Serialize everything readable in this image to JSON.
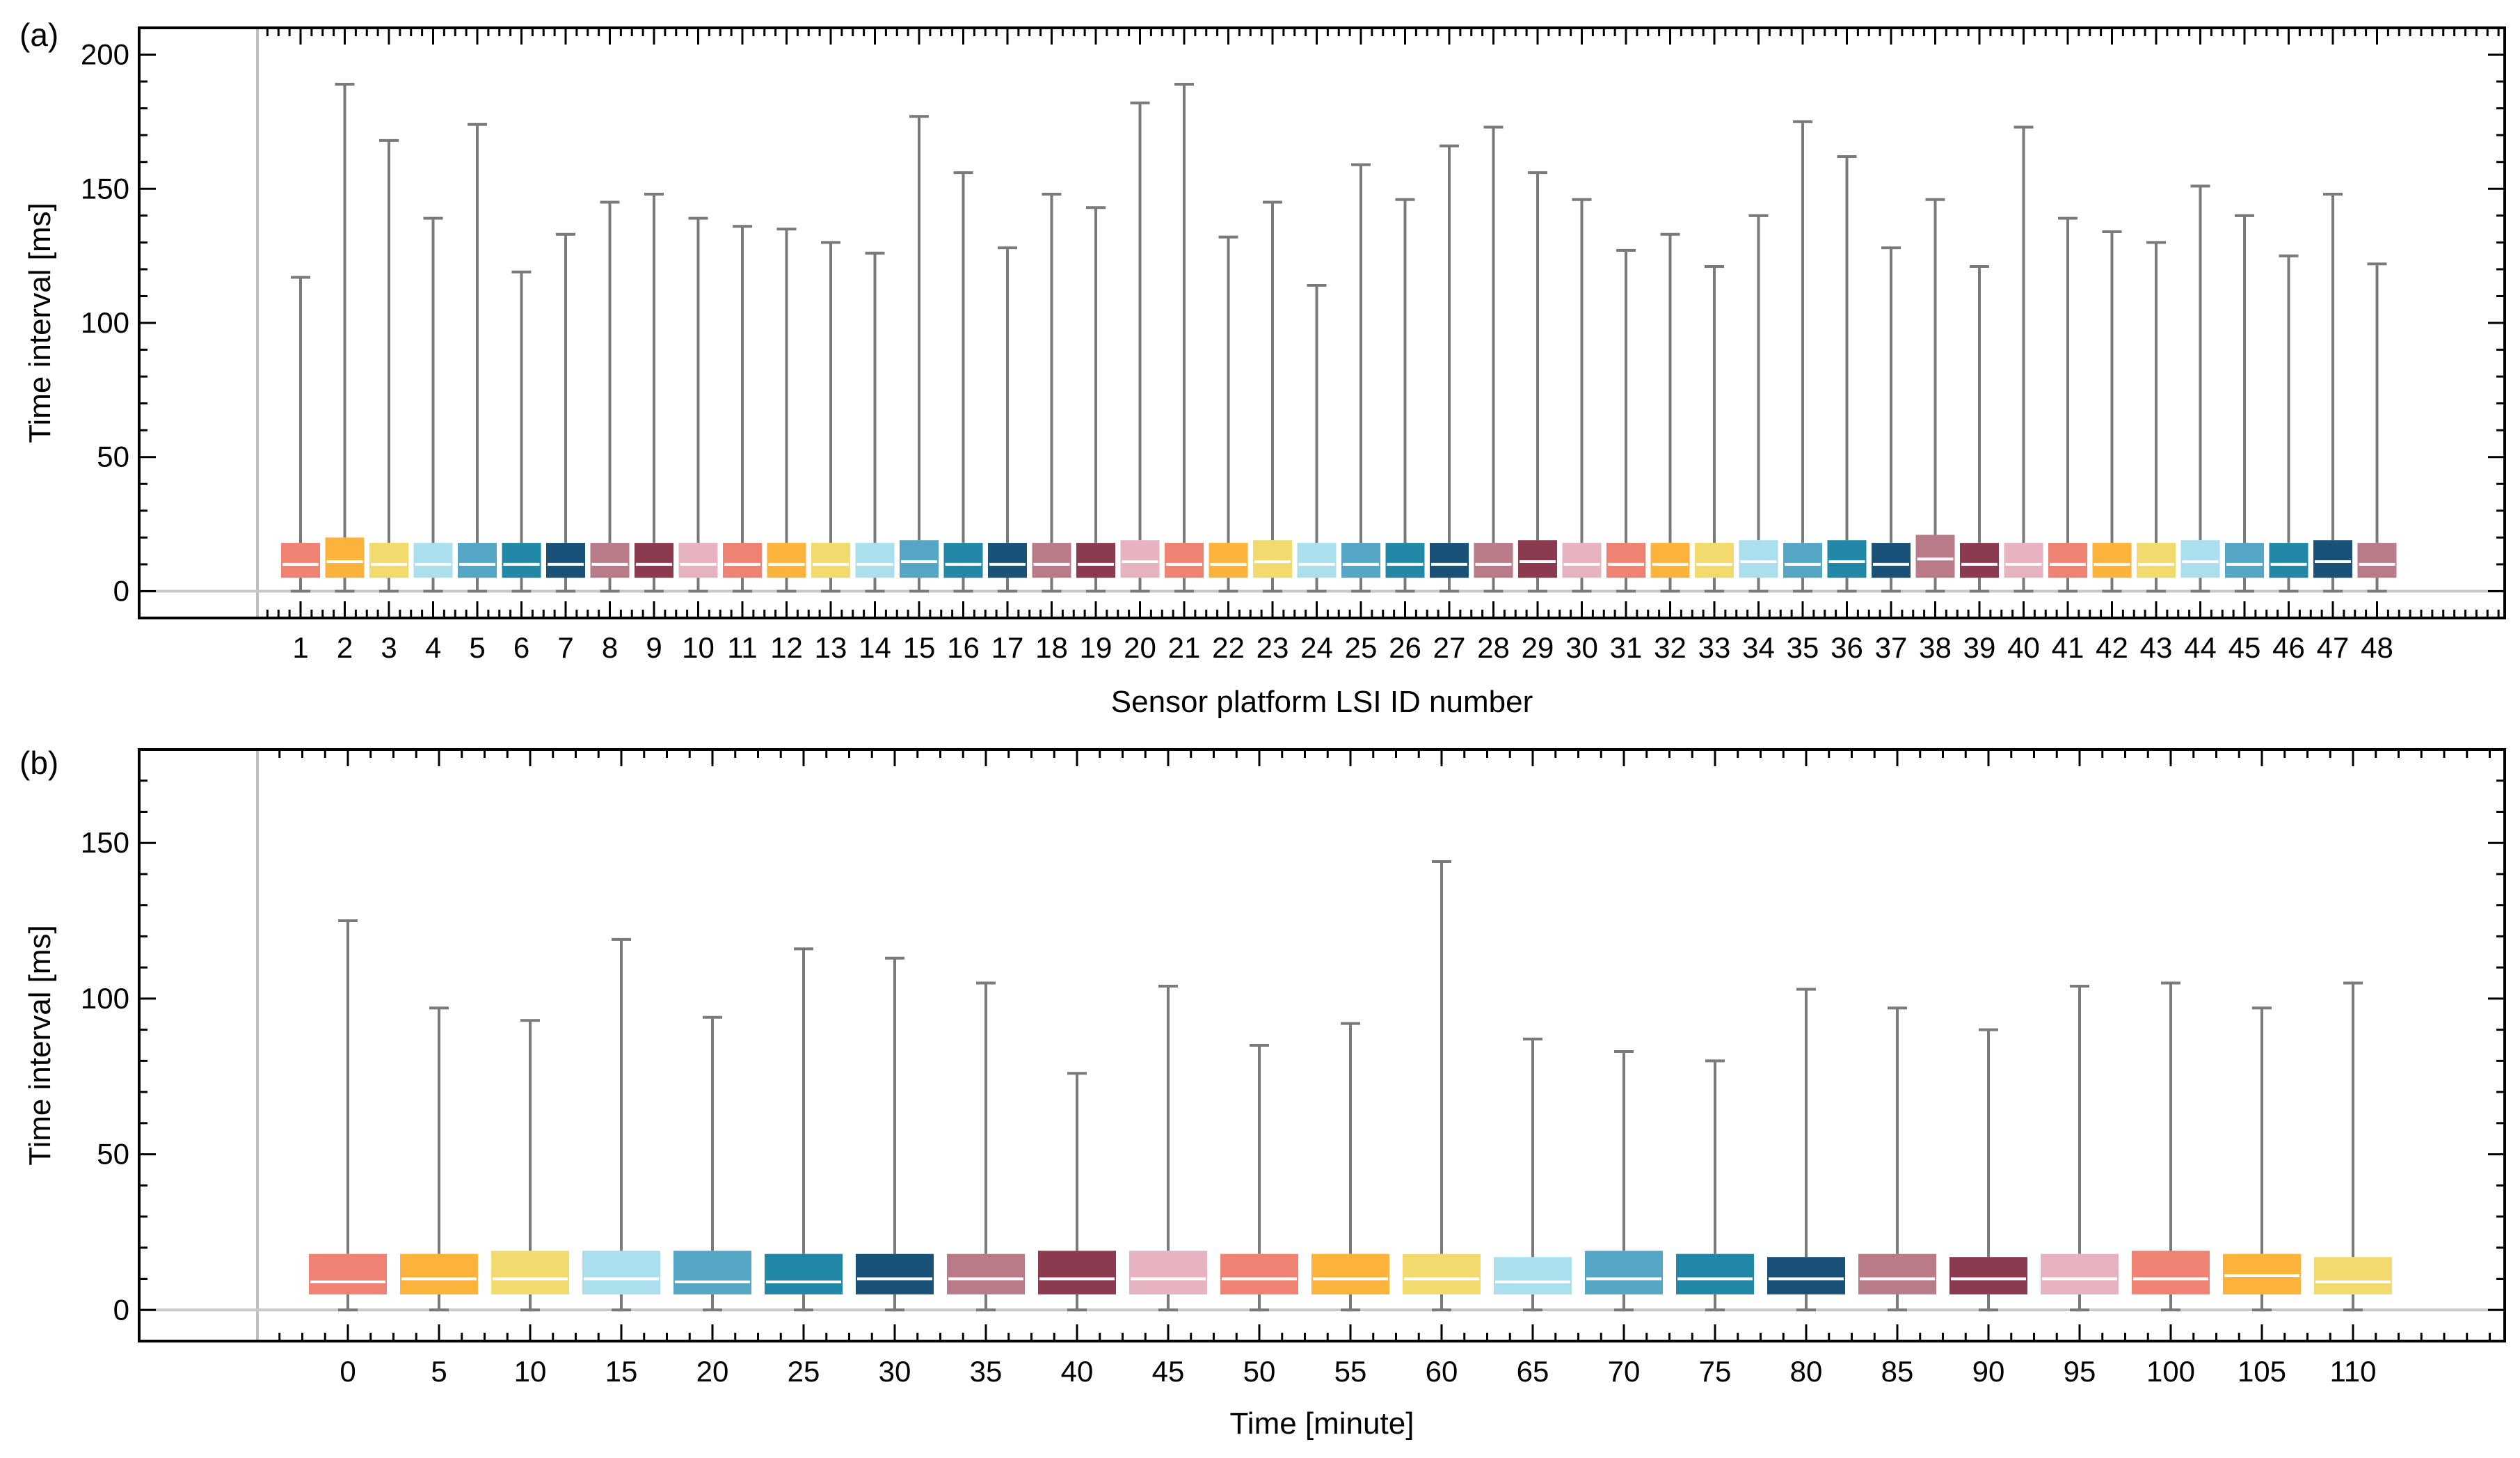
{
  "chart_data": [
    {
      "panel": "(a)",
      "type": "boxplot",
      "xlabel": "Sensor platform LSI ID number",
      "ylabel": "Time interval [ms]",
      "ylim": [
        -10,
        210
      ],
      "yticks": [
        0,
        50,
        100,
        150,
        200
      ],
      "grid": false,
      "categories": [
        "1",
        "2",
        "3",
        "4",
        "5",
        "6",
        "7",
        "8",
        "9",
        "10",
        "11",
        "12",
        "13",
        "14",
        "15",
        "16",
        "17",
        "18",
        "19",
        "20",
        "21",
        "22",
        "23",
        "24",
        "25",
        "26",
        "27",
        "28",
        "29",
        "30",
        "31",
        "32",
        "33",
        "34",
        "35",
        "36",
        "37",
        "38",
        "39",
        "40",
        "41",
        "42",
        "43",
        "44",
        "45",
        "46",
        "47",
        "48"
      ],
      "whisker_max": [
        117,
        189,
        168,
        139,
        174,
        119,
        133,
        145,
        148,
        139,
        136,
        135,
        130,
        126,
        177,
        156,
        128,
        148,
        143,
        182,
        189,
        132,
        145,
        114,
        159,
        146,
        166,
        173,
        156,
        146,
        127,
        133,
        121,
        140,
        175,
        162,
        128,
        146,
        121,
        173,
        139,
        134,
        130,
        151,
        140,
        125,
        148,
        122
      ],
      "q1": [
        5,
        5,
        5,
        5,
        5,
        5,
        5,
        5,
        5,
        5,
        5,
        5,
        5,
        5,
        5,
        5,
        5,
        5,
        5,
        5,
        5,
        5,
        5,
        5,
        5,
        5,
        5,
        5,
        5,
        5,
        5,
        5,
        5,
        5,
        5,
        5,
        5,
        5,
        5,
        5,
        5,
        5,
        5,
        5,
        5,
        5,
        5,
        5
      ],
      "median": [
        10,
        11,
        10,
        10,
        10,
        10,
        10,
        10,
        10,
        10,
        10,
        10,
        10,
        10,
        11,
        10,
        10,
        10,
        10,
        11,
        10,
        10,
        11,
        10,
        10,
        10,
        10,
        10,
        11,
        10,
        10,
        10,
        10,
        11,
        10,
        11,
        10,
        12,
        10,
        10,
        10,
        10,
        10,
        11,
        10,
        10,
        11,
        10
      ],
      "q3": [
        18,
        20,
        18,
        18,
        18,
        18,
        18,
        18,
        18,
        18,
        18,
        18,
        18,
        18,
        19,
        18,
        18,
        18,
        18,
        19,
        18,
        18,
        19,
        18,
        18,
        18,
        18,
        18,
        19,
        18,
        18,
        18,
        18,
        19,
        18,
        19,
        18,
        21,
        18,
        18,
        18,
        18,
        18,
        19,
        18,
        18,
        19,
        18
      ],
      "whisker_min": [
        0,
        0,
        0,
        0,
        0,
        0,
        0,
        0,
        0,
        0,
        0,
        0,
        0,
        0,
        0,
        0,
        0,
        0,
        0,
        0,
        0,
        0,
        0,
        0,
        0,
        0,
        0,
        0,
        0,
        0,
        0,
        0,
        0,
        0,
        0,
        0,
        0,
        0,
        0,
        0,
        0,
        0,
        0,
        0,
        0,
        0,
        0,
        0
      ],
      "palette": [
        "#ef8272",
        "#fbb33c",
        "#f2da6e",
        "#abdfee",
        "#55a6c4",
        "#2288a8",
        "#1a5179",
        "#b97b88",
        "#8b3a4f",
        "#e8b3c0"
      ]
    },
    {
      "panel": "(b)",
      "type": "boxplot",
      "xlabel": "Time [minute]",
      "ylabel": "Time interval [ms]",
      "ylim": [
        -10,
        180
      ],
      "yticks": [
        0,
        50,
        100,
        150
      ],
      "grid": false,
      "categories": [
        "0",
        "5",
        "10",
        "15",
        "20",
        "25",
        "30",
        "35",
        "40",
        "45",
        "50",
        "55",
        "60",
        "65",
        "70",
        "75",
        "80",
        "85",
        "90",
        "95",
        "100",
        "105",
        "110"
      ],
      "whisker_max": [
        125,
        97,
        93,
        119,
        94,
        116,
        113,
        105,
        76,
        104,
        85,
        92,
        144,
        87,
        83,
        80,
        103,
        97,
        90,
        104,
        105,
        97,
        105
      ],
      "q1": [
        5,
        5,
        5,
        5,
        5,
        5,
        5,
        5,
        5,
        5,
        5,
        5,
        5,
        5,
        5,
        5,
        5,
        5,
        5,
        5,
        5,
        5,
        5
      ],
      "median": [
        9,
        10,
        10,
        10,
        9,
        9,
        10,
        10,
        10,
        10,
        10,
        10,
        10,
        9,
        10,
        10,
        10,
        10,
        10,
        10,
        10,
        11,
        9
      ],
      "q3": [
        18,
        18,
        19,
        19,
        19,
        18,
        18,
        18,
        19,
        19,
        18,
        18,
        18,
        17,
        19,
        18,
        17,
        18,
        17,
        18,
        19,
        18,
        17
      ],
      "whisker_min": [
        0,
        0,
        0,
        0,
        0,
        0,
        0,
        0,
        0,
        0,
        0,
        0,
        0,
        0,
        0,
        0,
        0,
        0,
        0,
        0,
        0,
        0,
        0
      ],
      "palette": [
        "#ef8272",
        "#fbb33c",
        "#f2da6e",
        "#abdfee",
        "#55a6c4",
        "#2288a8",
        "#1a5179",
        "#b97b88",
        "#8b3a4f",
        "#e8b3c0"
      ]
    }
  ]
}
